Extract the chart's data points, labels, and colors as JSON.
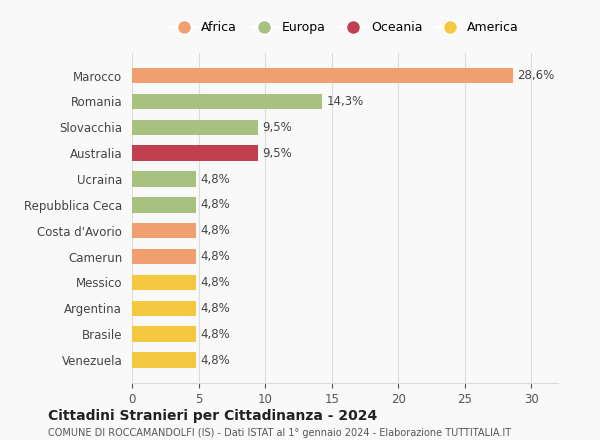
{
  "countries": [
    "Marocco",
    "Romania",
    "Slovacchia",
    "Australia",
    "Ucraina",
    "Repubblica Ceca",
    "Costa d'Avorio",
    "Camerun",
    "Messico",
    "Argentina",
    "Brasile",
    "Venezuela"
  ],
  "values": [
    28.6,
    14.3,
    9.5,
    9.5,
    4.8,
    4.8,
    4.8,
    4.8,
    4.8,
    4.8,
    4.8,
    4.8
  ],
  "labels": [
    "28,6%",
    "14,3%",
    "9,5%",
    "9,5%",
    "4,8%",
    "4,8%",
    "4,8%",
    "4,8%",
    "4,8%",
    "4,8%",
    "4,8%",
    "4,8%"
  ],
  "colors": [
    "#f0a070",
    "#a8c080",
    "#a8c080",
    "#c04050",
    "#a8c080",
    "#a8c080",
    "#f0a070",
    "#f0a070",
    "#f5c842",
    "#f5c842",
    "#f5c842",
    "#f5c842"
  ],
  "legend": [
    {
      "label": "Africa",
      "color": "#f0a070"
    },
    {
      "label": "Europa",
      "color": "#a8c080"
    },
    {
      "label": "Oceania",
      "color": "#c04050"
    },
    {
      "label": "America",
      "color": "#f5c842"
    }
  ],
  "xlim": [
    0,
    32
  ],
  "xticks": [
    0,
    5,
    10,
    15,
    20,
    25,
    30
  ],
  "title": "Cittadini Stranieri per Cittadinanza - 2024",
  "subtitle": "COMUNE DI ROCCAMANDOLFI (IS) - Dati ISTAT al 1° gennaio 2024 - Elaborazione TUTTITALIA.IT",
  "background_color": "#f9f9f9",
  "grid_color": "#dddddd"
}
